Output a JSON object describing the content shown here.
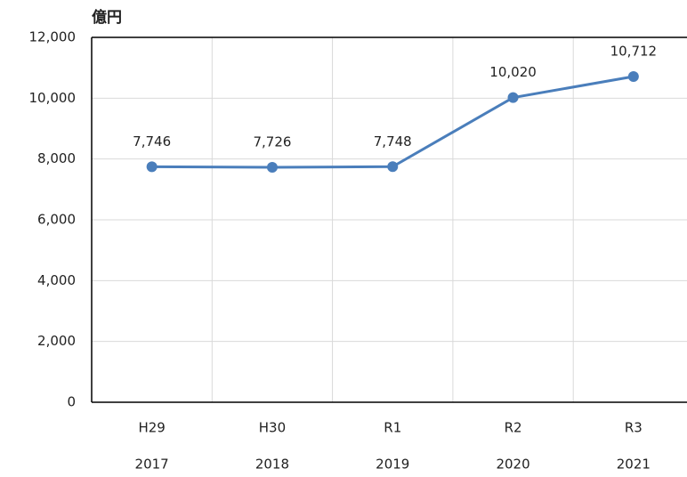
{
  "chart_data": {
    "type": "line",
    "y_axis_label": "億円",
    "categories": [
      [
        "H29",
        "2017"
      ],
      [
        "H30",
        "2018"
      ],
      [
        "R1",
        "2019"
      ],
      [
        "R2",
        "2020"
      ],
      [
        "R3",
        "2021"
      ]
    ],
    "series": [
      {
        "name": null,
        "color": "#4a7ebb",
        "values": [
          7746,
          7726,
          7748,
          10020,
          10712
        ],
        "value_labels": [
          "7,746",
          "7,726",
          "7,748",
          "10,020",
          "10,712"
        ]
      }
    ],
    "ylim": [
      0,
      12000
    ],
    "yticks": [
      0,
      {
        "value": 2000,
        "label": "2,000"
      },
      {
        "value": 4000,
        "label": "4,000"
      },
      {
        "value": 6000,
        "label": "6,000"
      },
      {
        "value": 8000,
        "label": "8,000"
      },
      {
        "value": 10000,
        "label": "10,000"
      },
      {
        "value": 12000,
        "label": "12,000"
      }
    ],
    "grid": true
  }
}
